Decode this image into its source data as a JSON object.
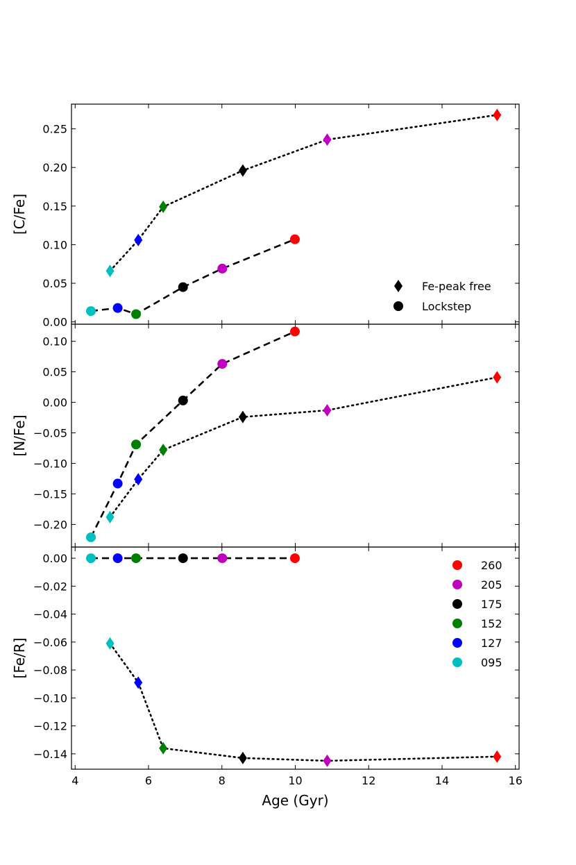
{
  "chart_data": [
    {
      "type": "line",
      "panel": "top",
      "ylabel": "[C/Fe]",
      "xlabel": "",
      "xlim": [
        3.9,
        16.1
      ],
      "ylim": [
        -0.003,
        0.282
      ],
      "yticks": [
        0.0,
        0.05,
        0.1,
        0.15,
        0.2,
        0.25
      ],
      "ytick_labels": [
        "0.00",
        "0.05",
        "0.10",
        "0.15",
        "0.20",
        "0.25"
      ],
      "series": [
        {
          "name": "Fe-peak free",
          "marker": "diamond",
          "linestyle": "dotted",
          "x": [
            4.95,
            5.72,
            6.4,
            8.57,
            10.87,
            15.5
          ],
          "y": [
            0.066,
            0.106,
            0.149,
            0.196,
            0.236,
            0.268
          ],
          "groups": [
            "095",
            "127",
            "152",
            "175",
            "205",
            "260"
          ]
        },
        {
          "name": "Lockstep",
          "marker": "circle",
          "linestyle": "dashed",
          "x": [
            4.43,
            5.16,
            5.66,
            6.94,
            8.01,
            9.99
          ],
          "y": [
            0.014,
            0.018,
            0.01,
            0.045,
            0.069,
            0.107
          ],
          "groups": [
            "095",
            "127",
            "152",
            "175",
            "205",
            "260"
          ]
        }
      ],
      "legend": {
        "position": "lower-right",
        "entries": [
          {
            "label": "Fe-peak free",
            "marker": "diamond"
          },
          {
            "label": "Lockstep",
            "marker": "circle"
          }
        ]
      }
    },
    {
      "type": "line",
      "panel": "middle",
      "ylabel": "[N/Fe]",
      "xlabel": "",
      "xlim": [
        3.9,
        16.1
      ],
      "ylim": [
        -0.237,
        0.128
      ],
      "yticks": [
        -0.2,
        -0.15,
        -0.1,
        -0.05,
        0.0,
        0.05,
        0.1
      ],
      "ytick_labels": [
        "−0.20",
        "−0.15",
        "−0.10",
        "−0.05",
        "0.00",
        "0.05",
        "0.10"
      ],
      "series": [
        {
          "name": "Fe-peak free",
          "marker": "diamond",
          "linestyle": "dotted",
          "x": [
            4.95,
            5.72,
            6.4,
            8.57,
            10.87,
            15.5
          ],
          "y": [
            -0.188,
            -0.126,
            -0.078,
            -0.024,
            -0.013,
            0.041
          ],
          "groups": [
            "095",
            "127",
            "152",
            "175",
            "205",
            "260"
          ]
        },
        {
          "name": "Lockstep",
          "marker": "circle",
          "linestyle": "dashed",
          "x": [
            4.43,
            5.16,
            5.66,
            6.94,
            8.01,
            9.99
          ],
          "y": [
            -0.221,
            -0.133,
            -0.069,
            0.003,
            0.063,
            0.116
          ],
          "groups": [
            "095",
            "127",
            "152",
            "175",
            "205",
            "260"
          ]
        }
      ]
    },
    {
      "type": "line",
      "panel": "bottom",
      "ylabel": "[Fe/R]",
      "xlabel": "Age (Gyr)",
      "xlim": [
        3.9,
        16.1
      ],
      "ylim": [
        -0.151,
        0.008
      ],
      "xticks": [
        4,
        6,
        8,
        10,
        12,
        14,
        16
      ],
      "xtick_labels": [
        "4",
        "6",
        "8",
        "10",
        "12",
        "14",
        "16"
      ],
      "yticks": [
        -0.14,
        -0.12,
        -0.1,
        -0.08,
        -0.06,
        -0.04,
        -0.02,
        0.0
      ],
      "ytick_labels": [
        "−0.14",
        "−0.12",
        "−0.10",
        "−0.08",
        "−0.06",
        "−0.04",
        "−0.02",
        "0.00"
      ],
      "series": [
        {
          "name": "Fe-peak free",
          "marker": "diamond",
          "linestyle": "dotted",
          "x": [
            4.95,
            5.72,
            6.4,
            8.57,
            10.87,
            15.5
          ],
          "y": [
            -0.061,
            -0.089,
            -0.136,
            -0.143,
            -0.145,
            -0.142
          ],
          "groups": [
            "095",
            "127",
            "152",
            "175",
            "205",
            "260"
          ]
        },
        {
          "name": "Lockstep",
          "marker": "circle",
          "linestyle": "dashed",
          "x": [
            4.43,
            5.16,
            5.66,
            6.94,
            8.01,
            9.99
          ],
          "y": [
            0.0,
            0.0,
            0.0,
            0.0,
            0.0,
            0.0
          ],
          "groups": [
            "095",
            "127",
            "152",
            "175",
            "205",
            "260"
          ]
        }
      ],
      "legend": {
        "position": "upper-right",
        "entries": [
          {
            "label": "260",
            "color": "#ff0000"
          },
          {
            "label": "205",
            "color": "#bf00bf"
          },
          {
            "label": "175",
            "color": "#000000"
          },
          {
            "label": "152",
            "color": "#008000"
          },
          {
            "label": "127",
            "color": "#0000ff"
          },
          {
            "label": "095",
            "color": "#00bfbf"
          }
        ]
      }
    }
  ],
  "group_colors": {
    "095": "#00bfbf",
    "127": "#0000ff",
    "152": "#008000",
    "175": "#000000",
    "205": "#bf00bf",
    "260": "#ff0000"
  }
}
